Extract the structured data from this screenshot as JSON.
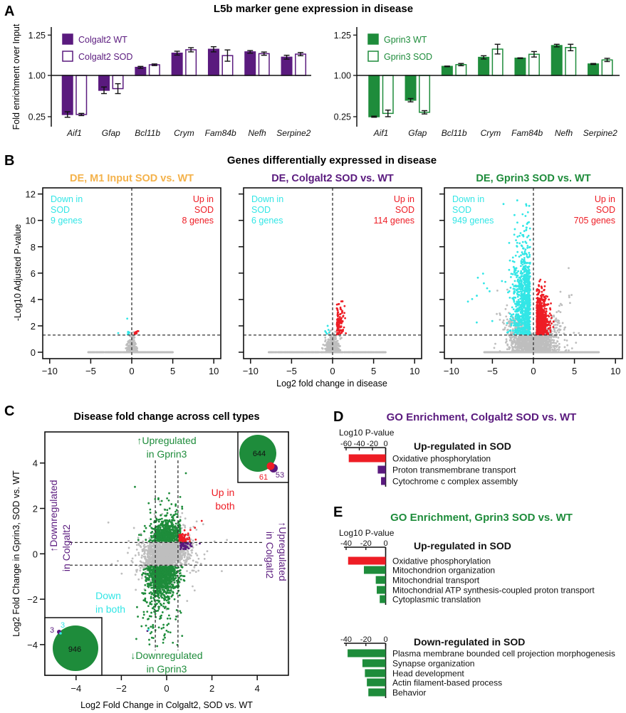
{
  "panel_letters": {
    "a": "A",
    "b": "B",
    "c": "C",
    "d": "D",
    "e": "E"
  },
  "colors": {
    "purple": "#5a1a7e",
    "green": "#1e8c3b",
    "cyan": "#33e6e6",
    "red": "#ee1d25",
    "orange": "#f4b24b",
    "grey": "#bebebe",
    "black": "#111111"
  },
  "chart_data": [
    {
      "id": "A-colgalt2",
      "type": "bar",
      "title": "L5b marker gene expression in disease",
      "ylabel": "Fold enrichment over Input",
      "yticks": [
        "0.25",
        "1.00",
        "1.25"
      ],
      "categories": [
        "Aif1",
        "Gfap",
        "Bcl11b",
        "Crym",
        "Fam84b",
        "Nefh",
        "Serpine2"
      ],
      "color": "#5a1a7e",
      "series": [
        {
          "name": "Colgalt2 WT",
          "fill": "solid",
          "values": [
            0.29,
            0.73,
            1.05,
            1.138,
            1.162,
            1.146,
            1.113
          ],
          "errors": [
            0.05,
            0.06,
            0.006,
            0.012,
            0.016,
            0.008,
            0.012
          ]
        },
        {
          "name": "Colgalt2 SOD",
          "fill": "open",
          "values": [
            0.29,
            0.76,
            1.066,
            1.159,
            1.123,
            1.135,
            1.132
          ],
          "errors": [
            0.02,
            0.09,
            0.005,
            0.013,
            0.035,
            0.01,
            0.01
          ]
        }
      ]
    },
    {
      "id": "A-gprin3",
      "type": "bar",
      "yticks": [
        "0.25",
        "1.00",
        "1.25"
      ],
      "categories": [
        "Aif1",
        "Gfap",
        "Bcl11b",
        "Crym",
        "Fam84b",
        "Nefh",
        "Serpine2"
      ],
      "color": "#1e8c3b",
      "series": [
        {
          "name": "Gprin3 WT",
          "fill": "solid",
          "values": [
            0.25,
            0.55,
            1.056,
            1.112,
            1.107,
            1.185,
            1.071
          ],
          "errors": [
            0.01,
            0.03,
            0.002,
            0.01,
            0.002,
            0.008,
            0.003
          ]
        },
        {
          "name": "Gprin3 SOD",
          "fill": "open",
          "values": [
            0.31,
            0.33,
            1.067,
            1.163,
            1.131,
            1.173,
            1.096
          ],
          "errors": [
            0.06,
            0.03,
            0.007,
            0.03,
            0.017,
            0.02,
            0.01
          ]
        }
      ]
    },
    {
      "id": "B-input",
      "type": "scatter",
      "group_title": "Genes differentially expressed in disease",
      "title": "DE, M1 Input SOD vs. WT",
      "title_color": "#f4b24b",
      "xlabel": "Log2 fold change in disease",
      "ylabel": "-Log10 Adjusted P-value",
      "xlim": [
        -10.7,
        10.9
      ],
      "ylim": [
        -0.5,
        12.5
      ],
      "xticks": [
        -10,
        -5,
        0,
        5,
        10
      ],
      "yticks": [
        0,
        2,
        4,
        6,
        8,
        10,
        12
      ],
      "threshold_y": 1.3,
      "threshold_x": 0,
      "down": {
        "label1": "Down in",
        "label2": "SOD",
        "count": "9 genes",
        "n": 9
      },
      "up": {
        "label1": "Up in",
        "label2": "SOD",
        "count": "8 genes",
        "n": 8
      }
    },
    {
      "id": "B-colgalt2",
      "type": "scatter",
      "title": "DE, Colgalt2 SOD vs. WT",
      "title_color": "#5a1a7e",
      "xlim": [
        -10.7,
        10.9
      ],
      "ylim": [
        -0.5,
        12.5
      ],
      "xticks": [
        -10,
        -5,
        0,
        5,
        10
      ],
      "yticks": [
        0,
        2,
        4,
        6,
        8,
        10,
        12
      ],
      "threshold_y": 1.3,
      "threshold_x": 0,
      "down": {
        "label1": "Down in",
        "label2": "SOD",
        "count": "6 genes",
        "n": 6
      },
      "up": {
        "label1": "Up in",
        "label2": "SOD",
        "count": "114 genes",
        "n": 114
      }
    },
    {
      "id": "B-gprin3",
      "type": "scatter",
      "title": "DE, Gprin3 SOD vs. WT",
      "title_color": "#1e8c3b",
      "xlim": [
        -10.7,
        10.9
      ],
      "ylim": [
        -0.5,
        12.5
      ],
      "xticks": [
        -10,
        -5,
        0,
        5,
        10
      ],
      "yticks": [
        0,
        2,
        4,
        6,
        8,
        10,
        12
      ],
      "threshold_y": 1.3,
      "threshold_x": 0,
      "down": {
        "label1": "Down in",
        "label2": "SOD",
        "count": "949 genes",
        "n": 949
      },
      "up": {
        "label1": "Up in",
        "label2": "SOD",
        "count": "705 genes",
        "n": 705
      }
    },
    {
      "id": "C",
      "type": "scatter",
      "title": "Disease fold change across cell types",
      "xlabel": "Log2 Fold Change in Colgalt2, SOD vs. WT",
      "ylabel": "Log2 Fold Change in Gprin3, SOD vs. WT",
      "xlim": [
        -5.3,
        5.4
      ],
      "ylim": [
        -5.35,
        5.35
      ],
      "xticks": [
        -4,
        -2,
        0,
        2,
        4
      ],
      "yticks": [
        -4,
        -2,
        0,
        2,
        4
      ],
      "cutoffs": [
        -0.5,
        0.5
      ],
      "annotations": {
        "up_gprin3": [
          "↑Upregulated",
          "in Gprin3"
        ],
        "down_gprin3": [
          "↓Downregulated",
          "in Gprin3"
        ],
        "down_colgalt2": [
          "↑Downregulated",
          "in Colgalt2"
        ],
        "up_colgalt2": [
          "↑Upregulated",
          "in Colgalt2"
        ],
        "up_both": [
          "Up in",
          "both"
        ],
        "down_both": [
          "Down",
          "in both"
        ]
      },
      "venn_up": {
        "gprin3_only": "644",
        "overlap": "61",
        "colgalt2_only": "53"
      },
      "venn_down": {
        "colgalt2_only": "3",
        "overlap": "3",
        "gprin3_only": "946"
      }
    },
    {
      "id": "D",
      "type": "bar",
      "orientation": "horizontal",
      "title": "GO Enrichment, Colgalt2 SOD vs. WT",
      "title_color": "#5a1a7e",
      "axis_label": "Log10 P-value",
      "xticks": [
        -60,
        -40,
        -20,
        0
      ],
      "xlim": [
        -60,
        0
      ],
      "sections": [
        {
          "heading": "Up-regulated in SOD",
          "categories": [
            "Oxidative phosphorylation",
            "Proton transmembrane transport",
            "Cytochrome c complex assembly"
          ],
          "values": [
            -56,
            -12,
            -7
          ],
          "colors": [
            "#ee1d25",
            "#5a1a7e",
            "#5a1a7e"
          ]
        }
      ]
    },
    {
      "id": "E",
      "type": "bar",
      "orientation": "horizontal",
      "title": "GO Enrichment, Gprin3 SOD vs. WT",
      "title_color": "#1e8c3b",
      "axis_label": "Log10 P-value",
      "xticks": [
        -40,
        -20,
        0
      ],
      "xlim": [
        -40,
        0
      ],
      "sections": [
        {
          "heading": "Up-regulated in SOD",
          "categories": [
            "Oxidative phosphorylation",
            "Mitochondrion organization",
            "Mitochondrial transport",
            "Mitochondrial ATP synthesis-coupled proton transport",
            "Cytoplasmic translation"
          ],
          "values": [
            -38,
            -22,
            -10,
            -9,
            -6
          ],
          "colors": [
            "#ee1d25",
            "#1e8c3b",
            "#1e8c3b",
            "#1e8c3b",
            "#1e8c3b"
          ]
        },
        {
          "heading": "Down-regulated in SOD",
          "categories": [
            "Plasma membrane bounded cell projection morphogenesis",
            "Synapse organization",
            "Head development",
            "Actin filament-based process",
            "Behavior"
          ],
          "values": [
            -38.5,
            -23.5,
            -21,
            -19,
            -17.5
          ],
          "colors": [
            "#1e8c3b",
            "#1e8c3b",
            "#1e8c3b",
            "#1e8c3b",
            "#1e8c3b"
          ]
        }
      ]
    }
  ]
}
